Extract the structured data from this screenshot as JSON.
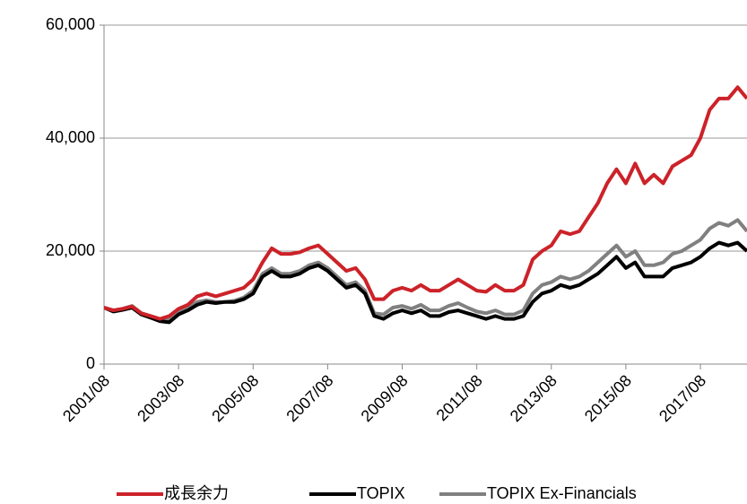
{
  "chart_data": {
    "type": "line",
    "x": [
      "2001/08",
      "2001/11",
      "2002/02",
      "2002/05",
      "2002/08",
      "2002/11",
      "2003/02",
      "2003/05",
      "2003/08",
      "2003/11",
      "2004/02",
      "2004/05",
      "2004/08",
      "2004/11",
      "2005/02",
      "2005/05",
      "2005/08",
      "2005/11",
      "2006/02",
      "2006/05",
      "2006/08",
      "2006/11",
      "2007/02",
      "2007/05",
      "2007/08",
      "2007/11",
      "2008/02",
      "2008/05",
      "2008/08",
      "2008/11",
      "2009/02",
      "2009/05",
      "2009/08",
      "2009/11",
      "2010/02",
      "2010/05",
      "2010/08",
      "2010/11",
      "2011/02",
      "2011/05",
      "2011/08",
      "2011/11",
      "2012/02",
      "2012/05",
      "2012/08",
      "2012/11",
      "2013/02",
      "2013/05",
      "2013/08",
      "2013/11",
      "2014/02",
      "2014/05",
      "2014/08",
      "2014/11",
      "2015/02",
      "2015/05",
      "2015/08",
      "2015/11",
      "2016/02",
      "2016/05",
      "2016/08",
      "2016/11",
      "2017/02",
      "2017/05",
      "2017/08",
      "2017/11",
      "2018/02",
      "2018/05",
      "2018/08",
      "2018/11"
    ],
    "xticks": [
      "2001/08",
      "2003/08",
      "2005/08",
      "2007/08",
      "2009/08",
      "2011/08",
      "2013/08",
      "2015/08",
      "2017/08"
    ],
    "ylim": [
      0,
      60000
    ],
    "yticks": [
      {
        "value": 0,
        "label": "0"
      },
      {
        "value": 20000,
        "label": "20,000"
      },
      {
        "value": 40000,
        "label": "40,000"
      },
      {
        "value": 60000,
        "label": "60,000"
      }
    ],
    "grid": true,
    "legend": "bottom",
    "series": [
      {
        "name": "TOPIX Ex-Financials",
        "color": "#808080",
        "values": [
          10000,
          9500,
          9800,
          10300,
          9000,
          8500,
          8000,
          7800,
          9200,
          10000,
          11000,
          11300,
          11000,
          11000,
          11200,
          11800,
          13000,
          16000,
          17000,
          16000,
          16000,
          16500,
          17500,
          18000,
          17000,
          15500,
          14000,
          14500,
          13000,
          9000,
          8800,
          10000,
          10300,
          9800,
          10500,
          9500,
          9500,
          10300,
          10800,
          10000,
          9300,
          9000,
          9500,
          8800,
          8800,
          9500,
          12500,
          14000,
          14500,
          15500,
          15000,
          15500,
          16500,
          18000,
          19500,
          21000,
          19000,
          20000,
          17500,
          17500,
          18000,
          19500,
          20000,
          21000,
          22000,
          24000,
          25000,
          24500,
          25500,
          23500
        ]
      },
      {
        "name": "TOPIX",
        "color": "#000000",
        "values": [
          10000,
          9300,
          9600,
          10000,
          8800,
          8200,
          7600,
          7400,
          8800,
          9500,
          10500,
          11000,
          10800,
          11000,
          11000,
          11500,
          12500,
          15500,
          16500,
          15500,
          15500,
          16000,
          17000,
          17500,
          16500,
          15000,
          13500,
          14000,
          12500,
          8500,
          8000,
          9000,
          9500,
          9000,
          9500,
          8500,
          8500,
          9200,
          9500,
          9000,
          8500,
          8000,
          8500,
          8000,
          8000,
          8500,
          11000,
          12500,
          13000,
          14000,
          13500,
          14000,
          15000,
          16000,
          17500,
          19000,
          17000,
          18000,
          15500,
          15500,
          15500,
          17000,
          17500,
          18000,
          19000,
          20500,
          21500,
          21000,
          21500,
          20000
        ]
      },
      {
        "name": "成長余力",
        "color": "#cc2229",
        "values": [
          10000,
          9500,
          9800,
          10200,
          9000,
          8500,
          8000,
          8500,
          9800,
          10500,
          12000,
          12500,
          12000,
          12500,
          13000,
          13500,
          15000,
          18000,
          20500,
          19500,
          19500,
          19800,
          20500,
          21000,
          19500,
          18000,
          16500,
          17000,
          15000,
          11500,
          11500,
          13000,
          13500,
          13000,
          14000,
          13000,
          13000,
          14000,
          15000,
          14000,
          13000,
          12800,
          14000,
          13000,
          13000,
          14000,
          18500,
          20000,
          21000,
          23500,
          23000,
          23500,
          26000,
          28500,
          32000,
          34500,
          32000,
          35500,
          32000,
          33500,
          32000,
          35000,
          36000,
          37000,
          40000,
          45000,
          47000,
          47000,
          49000,
          47000
        ]
      }
    ]
  }
}
